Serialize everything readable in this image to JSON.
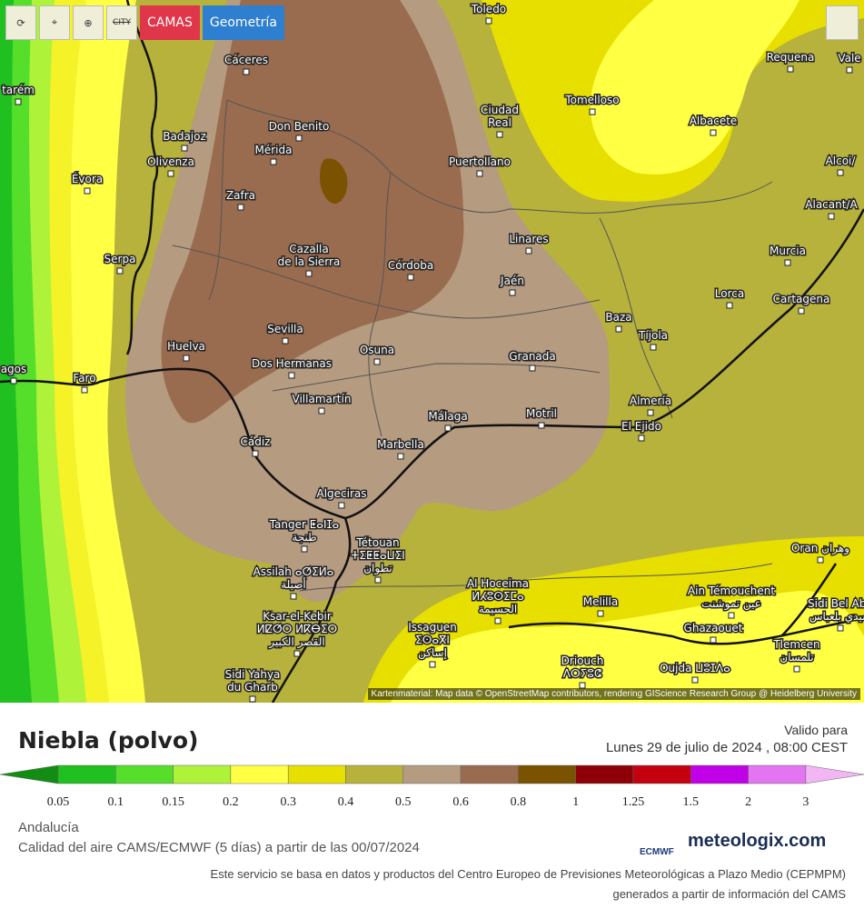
{
  "toolbar": {
    "city": "CITY",
    "camas": "CAMAS",
    "geometria": "Geometría"
  },
  "map": {
    "cities": [
      {
        "lines": [
          "Toledo"
        ]
      },
      {
        "lines": [
          "Cáceres"
        ]
      },
      {
        "lines": [
          "Requena"
        ]
      },
      {
        "lines": [
          "Vale"
        ]
      },
      {
        "lines": [
          "tarém"
        ]
      },
      {
        "lines": [
          "Ciudad",
          "Real"
        ]
      },
      {
        "lines": [
          "Tomelloso"
        ]
      },
      {
        "lines": [
          "Albacete"
        ]
      },
      {
        "lines": [
          "Badajoz"
        ]
      },
      {
        "lines": [
          "Don Benito"
        ]
      },
      {
        "lines": [
          "Mérida"
        ]
      },
      {
        "lines": [
          "Olivenza"
        ]
      },
      {
        "lines": [
          "Puertollano"
        ]
      },
      {
        "lines": [
          "Alcoi/"
        ]
      },
      {
        "lines": [
          "Évora"
        ]
      },
      {
        "lines": [
          "Zafra"
        ]
      },
      {
        "lines": [
          "Alacant/A"
        ]
      },
      {
        "lines": [
          "Linares"
        ]
      },
      {
        "lines": [
          "Cazalla",
          "de la Sierra"
        ]
      },
      {
        "lines": [
          "Serpa"
        ]
      },
      {
        "lines": [
          "Murcia"
        ]
      },
      {
        "lines": [
          "Córdoba"
        ]
      },
      {
        "lines": [
          "Jaén"
        ]
      },
      {
        "lines": [
          "Lorca"
        ]
      },
      {
        "lines": [
          "Cartagena"
        ]
      },
      {
        "lines": [
          "Baza"
        ]
      },
      {
        "lines": [
          "Sevilla"
        ]
      },
      {
        "lines": [
          "Tíjola"
        ]
      },
      {
        "lines": [
          "Huelva"
        ]
      },
      {
        "lines": [
          "Osuna"
        ]
      },
      {
        "lines": [
          "Granada"
        ]
      },
      {
        "lines": [
          "Dos Hermanas"
        ]
      },
      {
        "lines": [
          "agos"
        ]
      },
      {
        "lines": [
          "Faro"
        ]
      },
      {
        "lines": [
          "Villamartín"
        ]
      },
      {
        "lines": [
          "Almería"
        ]
      },
      {
        "lines": [
          "Málaga"
        ]
      },
      {
        "lines": [
          "Motril"
        ]
      },
      {
        "lines": [
          "El Ejido"
        ]
      },
      {
        "lines": [
          "Cádiz"
        ]
      },
      {
        "lines": [
          "Marbella"
        ]
      },
      {
        "lines": [
          "Algeciras"
        ]
      },
      {
        "lines": [
          "Tanger ⵟⴰⵏⵊⴰ",
          "طنجة"
        ]
      },
      {
        "lines": [
          "Tétouan",
          "ⵜⵉⵟⵟⴰⵡⵉⵏ",
          "تطوان"
        ]
      },
      {
        "lines": [
          "Oran وهران"
        ]
      },
      {
        "lines": [
          "Assilah ⴰⵚⵉⵍⴰ",
          "أصيلة"
        ]
      },
      {
        "lines": [
          "Al Hoceima",
          "ⵍⵃⵓⵙⵉⵎⴰ",
          "الحسيمة"
        ]
      },
      {
        "lines": [
          "Ain Témouchent",
          "عين تموشنت"
        ]
      },
      {
        "lines": [
          "Melilla"
        ]
      },
      {
        "lines": [
          "Sidi Bel Abb",
          "سيدي بلعباس"
        ]
      },
      {
        "lines": [
          "Ksar-el-Kebir",
          "ⵍⵇⵚⵔ ⵍⴽⴱⵉⵔ",
          "القصر الكبير"
        ]
      },
      {
        "lines": [
          "Issaguen",
          "ⵉⵙⴰⴳⵏ",
          "إساكن"
        ]
      },
      {
        "lines": [
          "Ghazaouet"
        ]
      },
      {
        "lines": [
          "Driouch",
          "ⴷⵔⵢⵓⵛ"
        ]
      },
      {
        "lines": [
          "Tlemcen",
          "تلمسان"
        ]
      },
      {
        "lines": [
          "Oujda ⵡⵓⵊⴷⴰ"
        ]
      },
      {
        "lines": [
          "Sidi Yahya",
          "du Gharb"
        ]
      }
    ],
    "attribution": "Kartenmaterial: Map data © OpenStreetMap contributors, rendering GIScience Research Group @ Heidelberg University"
  },
  "footer": {
    "title": "Niebla (polvo)",
    "valid_label": "Valido para",
    "valid_date": "Lunes 29 de julio de 2024 , 08:00 CEST",
    "region": "Andalucía",
    "model": "Calidad del aire CAMS/ECMWF (5 días) a partir de las 00/07/2024",
    "ecmwf": "ECMWF",
    "brand": "meteologix.com",
    "note1": "Este servicio se basa en datos y productos del Centro Europeo de Previsiones Meteorológicas a Plazo Medio (CEPMPM)",
    "note2": "generados a partir de información del CAMS"
  },
  "legend": {
    "labels": [
      "0.05",
      "0.1",
      "0.15",
      "0.2",
      "0.3",
      "0.4",
      "0.5",
      "0.6",
      "0.8",
      "1",
      "1.25",
      "1.5",
      "2",
      "3"
    ],
    "colors": [
      "#138c13",
      "#1fc01f",
      "#55de2a",
      "#aef23a",
      "#ffff44",
      "#e6df00",
      "#b7b23b",
      "#b59b80",
      "#9a6c4f",
      "#7a5200",
      "#8e0008",
      "#c4000f",
      "#c000e6",
      "#e374f2",
      "#f2b6f4"
    ]
  }
}
